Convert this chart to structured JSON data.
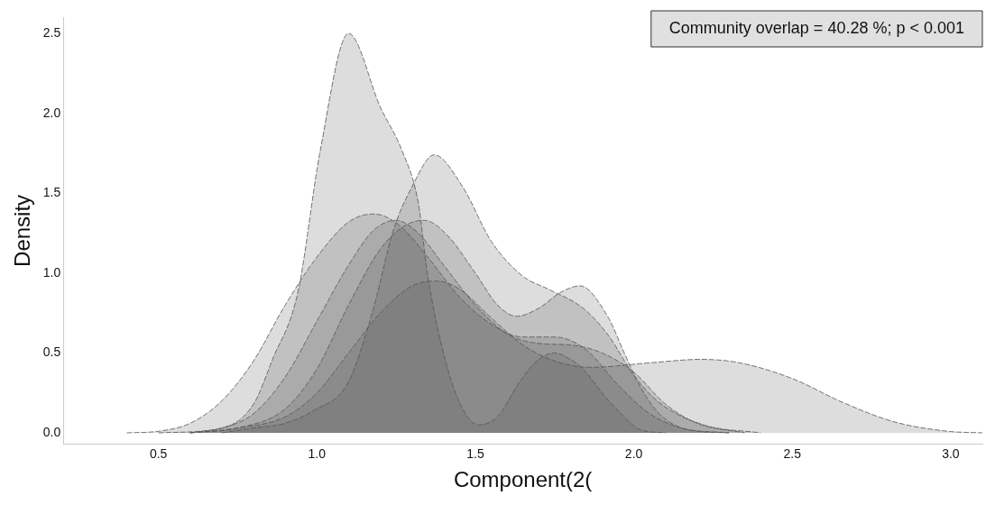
{
  "chart_data": {
    "type": "area",
    "xlabel": "Component(2(",
    "ylabel": "Density",
    "annotations": [
      "Community overlap = 40.28 %; p < 0.001"
    ],
    "xlim": [
      0.2,
      3.1
    ],
    "ylim": [
      -0.07,
      2.6
    ],
    "xticks": [
      0.5,
      {
        "value": 1,
        "label": "1.0"
      },
      1.5,
      {
        "value": 2,
        "label": "2.0"
      },
      2.5,
      {
        "value": 3,
        "label": "3.0"
      }
    ],
    "yticks": [
      {
        "value": 0,
        "label": "0.0"
      },
      0.5,
      {
        "value": 1,
        "label": "1.0"
      },
      1.5,
      {
        "value": 2,
        "label": "2.0"
      },
      2.5
    ],
    "grid": false,
    "legend": false,
    "line_style": "dashed",
    "series": [
      {
        "color": "#555555",
        "x": [
          0.5,
          0.7,
          0.8,
          0.86,
          0.94,
          1.01,
          1.1,
          1.2,
          1.27,
          1.32,
          1.35,
          1.41,
          1.46,
          1.51,
          1.57,
          1.64,
          1.7,
          1.75,
          1.8,
          1.84,
          1.9,
          1.95,
          2.02,
          2.1
        ],
        "values": [
          0,
          0.03,
          0.18,
          0.46,
          0.88,
          1.76,
          2.5,
          2.04,
          1.76,
          1.44,
          0.98,
          0.42,
          0.15,
          0.05,
          0.1,
          0.32,
          0.46,
          0.5,
          0.46,
          0.4,
          0.25,
          0.14,
          0.02,
          0
        ]
      },
      {
        "color": "#555555",
        "x": [
          0.7,
          0.8,
          0.9,
          0.99,
          1.1,
          1.18,
          1.24,
          1.3,
          1.37,
          1.46,
          1.55,
          1.65,
          1.73,
          1.84,
          1.92,
          2.0,
          2.08,
          2.22,
          2.4
        ],
        "values": [
          0,
          0.03,
          0.06,
          0.14,
          0.32,
          0.79,
          1.26,
          1.54,
          1.74,
          1.54,
          1.2,
          0.98,
          0.9,
          0.78,
          0.61,
          0.36,
          0.19,
          0.05,
          0
        ]
      },
      {
        "color": "#555555",
        "x": [
          0.6,
          0.75,
          0.9,
          1.0,
          1.1,
          1.2,
          1.28,
          1.34,
          1.41,
          1.5,
          1.57,
          1.63,
          1.7,
          1.77,
          1.83,
          1.92,
          1.97,
          2.02,
          2.08,
          2.17,
          2.3
        ],
        "values": [
          0,
          0.03,
          0.15,
          0.4,
          0.8,
          1.15,
          1.3,
          1.33,
          1.24,
          1.0,
          0.8,
          0.73,
          0.78,
          0.88,
          0.92,
          0.72,
          0.5,
          0.29,
          0.12,
          0.02,
          0
        ]
      },
      {
        "color": "#555555",
        "x": [
          0.4,
          0.5,
          0.6,
          0.7,
          0.8,
          0.9,
          1.0,
          1.1,
          1.18,
          1.26,
          1.35,
          1.45,
          1.55,
          1.65,
          1.75,
          1.85,
          1.95,
          2.05,
          2.15,
          2.3
        ],
        "values": [
          0,
          0.01,
          0.06,
          0.2,
          0.45,
          0.8,
          1.1,
          1.32,
          1.37,
          1.3,
          1.1,
          0.85,
          0.68,
          0.6,
          0.6,
          0.52,
          0.3,
          0.12,
          0.03,
          0
        ]
      },
      {
        "color": "#555555",
        "x": [
          0.6,
          0.7,
          0.8,
          0.9,
          1.0,
          1.1,
          1.18,
          1.25,
          1.32,
          1.4,
          1.5,
          1.6,
          1.7,
          1.8,
          1.9,
          2.0,
          2.1,
          2.2,
          2.35
        ],
        "values": [
          0,
          0.03,
          0.12,
          0.35,
          0.7,
          1.05,
          1.27,
          1.33,
          1.25,
          1.05,
          0.8,
          0.62,
          0.56,
          0.55,
          0.5,
          0.38,
          0.18,
          0.06,
          0
        ]
      },
      {
        "color": "#555555",
        "x": [
          0.6,
          0.75,
          0.9,
          1.0,
          1.1,
          1.2,
          1.3,
          1.38,
          1.45,
          1.55,
          1.65,
          1.75,
          1.86,
          2.06,
          2.21,
          2.33,
          2.5,
          2.66,
          2.82,
          2.99,
          3.1
        ],
        "values": [
          0,
          0.03,
          0.1,
          0.25,
          0.5,
          0.75,
          0.92,
          0.95,
          0.9,
          0.72,
          0.55,
          0.45,
          0.41,
          0.44,
          0.46,
          0.44,
          0.34,
          0.19,
          0.07,
          0.01,
          0
        ]
      }
    ]
  }
}
